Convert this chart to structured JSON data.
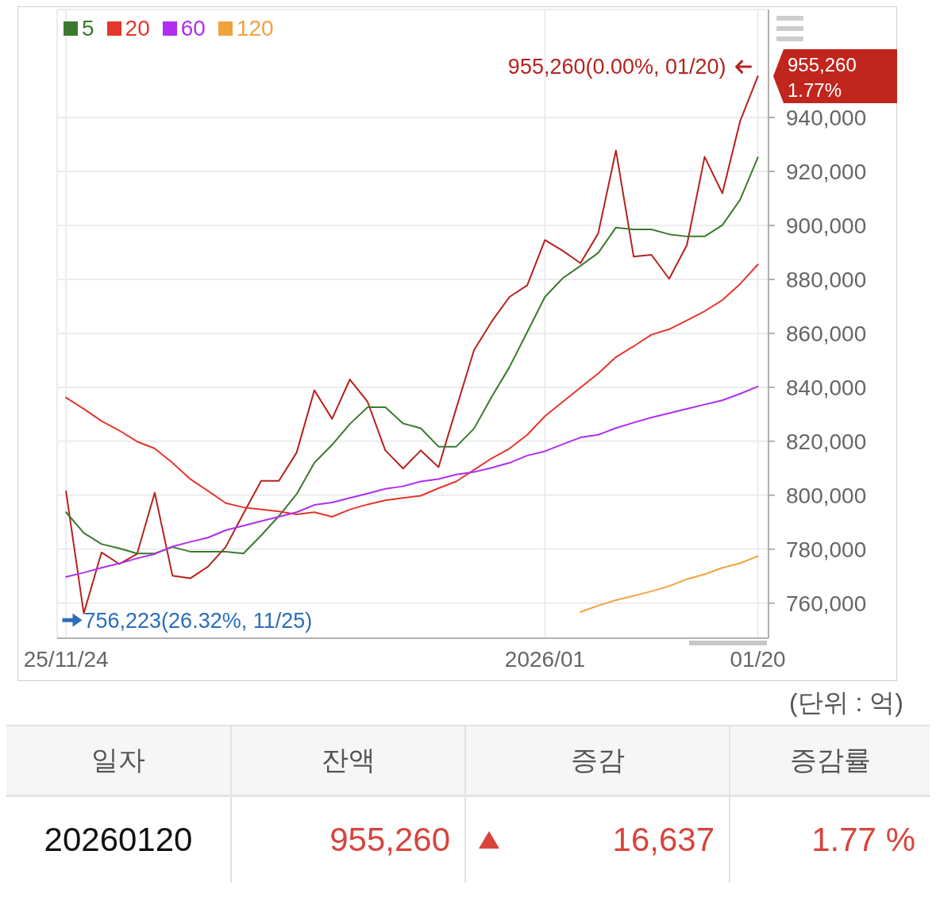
{
  "chart_data": {
    "type": "line",
    "categories": [
      "25/11/24",
      null,
      null,
      null,
      null,
      null,
      null,
      null,
      null,
      null,
      null,
      null,
      null,
      null,
      null,
      null,
      null,
      null,
      null,
      null,
      null,
      null,
      null,
      null,
      null,
      null,
      null,
      "2026/01",
      null,
      null,
      null,
      null,
      null,
      null,
      null,
      null,
      null,
      null,
      null,
      "01/20"
    ],
    "series": [
      {
        "color": "#b5221e",
        "values": [
          801400,
          756223,
          778800,
          774500,
          778200,
          800900,
          770200,
          769200,
          773500,
          780800,
          793200,
          805300,
          805300,
          815800,
          838900,
          828300,
          842900,
          834600,
          816600,
          809900,
          816600,
          810400,
          832200,
          853800,
          864400,
          873500,
          877800,
          894600,
          890600,
          886000,
          897000,
          927800,
          888400,
          889100,
          880200,
          892700,
          925400,
          911900,
          938600,
          955260
        ]
      },
      {
        "name": "5",
        "color": "#3b7a2e",
        "values": [
          793700,
          786000,
          781900,
          780300,
          778400,
          778400,
          780800,
          779100,
          779100,
          779100,
          778400,
          785100,
          792300,
          800400,
          812000,
          818700,
          826400,
          832600,
          832600,
          826600,
          824800,
          818000,
          818000,
          824700,
          836500,
          847500,
          860500,
          873500,
          880400,
          885000,
          889800,
          899200,
          898500,
          898500,
          896700,
          895900,
          895900,
          900100,
          909500,
          925200
        ]
      },
      {
        "name": "20",
        "color": "#e5362c",
        "values": [
          836200,
          832000,
          827500,
          824000,
          819900,
          817300,
          812000,
          806000,
          801600,
          797100,
          795500,
          794700,
          794000,
          792900,
          793700,
          792000,
          794700,
          796600,
          798100,
          799000,
          799800,
          802600,
          805100,
          809400,
          813700,
          817300,
          822400,
          829300,
          834600,
          839900,
          845100,
          851200,
          855200,
          859500,
          861500,
          864800,
          868200,
          872300,
          878300,
          885500
        ]
      },
      {
        "name": "60",
        "color": "#b02ef0",
        "values": [
          769700,
          771300,
          773100,
          774700,
          776600,
          778200,
          781000,
          782700,
          784300,
          787000,
          788700,
          790400,
          792000,
          793700,
          796400,
          797300,
          799000,
          800600,
          802400,
          803300,
          805100,
          806000,
          807700,
          808600,
          810200,
          812000,
          814700,
          816300,
          818900,
          821400,
          822400,
          824900,
          826900,
          828800,
          830400,
          832000,
          833600,
          835200,
          837600,
          840300
        ]
      },
      {
        "name": "120",
        "color": "#f0a23c",
        "values": [
          null,
          null,
          null,
          null,
          null,
          null,
          null,
          null,
          null,
          null,
          null,
          null,
          null,
          null,
          null,
          null,
          null,
          null,
          null,
          null,
          null,
          null,
          null,
          null,
          null,
          null,
          null,
          null,
          null,
          756700,
          759100,
          761100,
          762700,
          764400,
          766300,
          768900,
          770700,
          773100,
          774800,
          777400
        ]
      }
    ],
    "ylim": [
      747000,
      980000
    ],
    "yticks": [
      {
        "value": 760000,
        "label": "760,000"
      },
      {
        "value": 780000,
        "label": "780,000"
      },
      {
        "value": 800000,
        "label": "800,000"
      },
      {
        "value": 820000,
        "label": "820,000"
      },
      {
        "value": 840000,
        "label": "840,000"
      },
      {
        "value": 860000,
        "label": "860,000"
      },
      {
        "value": 880000,
        "label": "880,000"
      },
      {
        "value": 900000,
        "label": "900,000"
      },
      {
        "value": 920000,
        "label": "920,000"
      },
      {
        "value": 940000,
        "label": "940,000"
      }
    ],
    "grid": true,
    "legend": "top left",
    "annotations": [
      {
        "text": "955,260(0.00%, 01/20)",
        "x": "01/20",
        "y": 955260
      },
      "756,223(26.32%, 11/25)",
      "955,260",
      "1.77%",
      "(단위 : 억)",
      "일자",
      "잔액",
      "증감",
      "증감률",
      "20260120",
      "955,260",
      "16,637",
      "1.77 %"
    ]
  }
}
